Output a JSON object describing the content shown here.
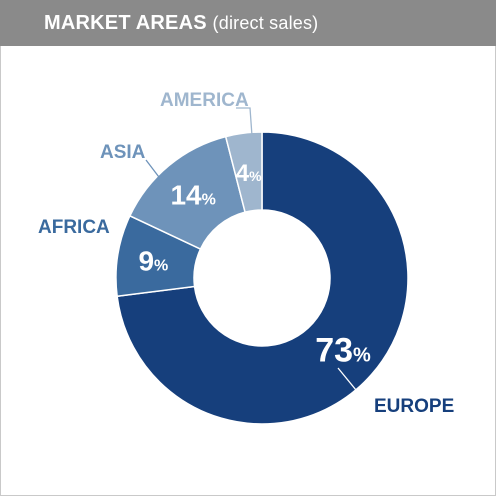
{
  "header": {
    "title": "MARKET AREAS",
    "subtitle": "(direct sales)"
  },
  "colors": {
    "header_bg": "#8a8a8a",
    "europe": "#163f7c",
    "africa": "#3a6a9e",
    "asia": "#6e93ba",
    "america": "#9fb6ce",
    "label_dark": "#163f7c",
    "label_mid": "#3a6a9e",
    "label_light": "#6e93ba",
    "label_lighter": "#9fb6ce"
  },
  "chart_data": {
    "type": "pie",
    "variant": "donut",
    "slices": [
      {
        "label": "EUROPE",
        "value": 73,
        "display": "73",
        "color": "#163f7c",
        "label_color": "#163f7c"
      },
      {
        "label": "AFRICA",
        "value": 9,
        "display": "9",
        "color": "#3a6a9e",
        "label_color": "#3a6a9e"
      },
      {
        "label": "ASIA",
        "value": 14,
        "display": "14",
        "color": "#6e93ba",
        "label_color": "#6e93ba"
      },
      {
        "label": "AMERICA",
        "value": 4,
        "display": "4",
        "color": "#9fb6ce",
        "label_color": "#9fb6ce"
      }
    ],
    "percent_symbol": "%",
    "start": "top",
    "direction": "clockwise"
  }
}
